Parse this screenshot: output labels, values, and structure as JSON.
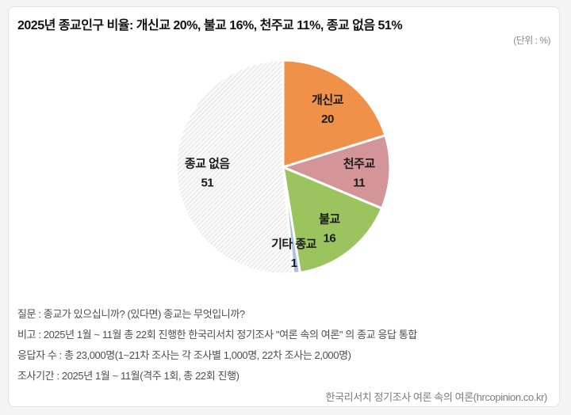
{
  "chart_data": {
    "type": "pie",
    "title": "2025년 종교인구 비율: 개신교 20%, 불교 16%, 천주교 11%, 종교 없음 51%",
    "unit_label": "(단위 : %)",
    "direction": "clockwise",
    "start_angle_deg": 0,
    "labels_position": "inside",
    "slices": [
      {
        "label": "개신교",
        "value": 20,
        "color": "#F0914A"
      },
      {
        "label": "천주교",
        "value": 11,
        "color": "#D49599"
      },
      {
        "label": "불교",
        "value": 16,
        "color": "#9CC45E"
      },
      {
        "label": "기타 종교",
        "value": 1,
        "color": "#A9C3DE"
      },
      {
        "label": "종교 없음",
        "value": 51,
        "color": "hatch"
      }
    ],
    "hatch_style": {
      "background": "#FCFCFC",
      "line_color": "#E5E5E5",
      "direction": "diagonal"
    },
    "separator_color": "#FFFFFF"
  },
  "footer": {
    "lines": [
      "질문 : 종교가 있으십니까? (있다면) 종교는 무엇입니까?",
      "비고 : 2025년 1월 ~ 11월 총 22회 진행한 한국리서치 정기조사 \"여론 속의 여론\" 의 종교 응답 통합",
      "응답자 수 : 총 23,000명(1~21차 조사는 각 조사별 1,000명, 22차 조사는 2,000명)",
      "조사기간 : 2025년 1월 ~ 11월(격주 1회, 총 22회 진행)"
    ],
    "source": "한국리서치 정기조사 여론 속의 여론(hrcopinion.co.kr)"
  }
}
